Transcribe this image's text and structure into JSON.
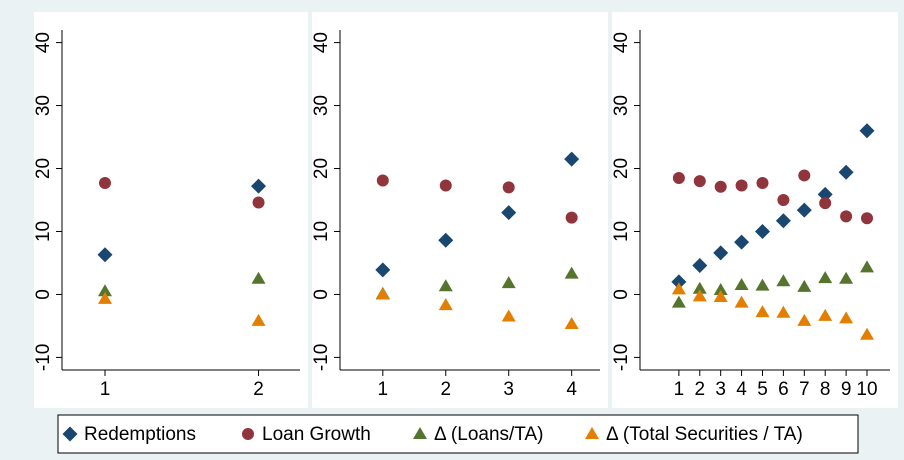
{
  "chart_data": [
    {
      "type": "scatter",
      "x": [
        1,
        2
      ],
      "xlim": [
        0.72,
        2.27
      ],
      "xticks": [
        1,
        2
      ],
      "ylim": [
        -12,
        42
      ],
      "yticks": [
        -10,
        0,
        10,
        20,
        30,
        40
      ],
      "series": [
        {
          "name": "Redemptions",
          "color": "#1a476f",
          "values": [
            6.3,
            17.2
          ]
        },
        {
          "name": "Loan Growth",
          "color": "#90353b",
          "values": [
            17.7,
            14.6
          ]
        },
        {
          "name": "Δ (Loans/TA)",
          "color": "#55752f",
          "values": [
            0.5,
            2.5
          ]
        },
        {
          "name": "Δ (Total Securities / TA)",
          "color": "#e37e00",
          "values": [
            -0.7,
            -4.2
          ]
        }
      ]
    },
    {
      "type": "scatter",
      "x": [
        1,
        2,
        3,
        4
      ],
      "xlim": [
        0.32,
        4.45
      ],
      "xticks": [
        1,
        2,
        3,
        4
      ],
      "ylim": [
        -12,
        42
      ],
      "yticks": [
        -10,
        0,
        10,
        20,
        30,
        40
      ],
      "series": [
        {
          "color": "#1a476f",
          "values": [
            3.9,
            8.6,
            13,
            21.5
          ]
        },
        {
          "color": "#90353b",
          "values": [
            18.1,
            17.3,
            17,
            12.2
          ]
        },
        {
          "color": "#55752f",
          "values": [
            0.1,
            1.3,
            1.8,
            3.3
          ]
        },
        {
          "color": "#e37e00",
          "values": [
            0,
            -1.7,
            -3.5,
            -4.7
          ]
        }
      ]
    },
    {
      "type": "scatter",
      "x": [
        1,
        2,
        3,
        4,
        5,
        6,
        7,
        8,
        9,
        10
      ],
      "xlim": [
        -0.86,
        11.1
      ],
      "xticks": [
        1,
        2,
        3,
        4,
        5,
        6,
        7,
        8,
        9,
        10
      ],
      "ylim": [
        -12,
        42
      ],
      "yticks": [
        -10,
        0,
        10,
        20,
        30,
        40
      ],
      "series": [
        {
          "color": "#1a476f",
          "values": [
            2,
            4.6,
            6.6,
            8.3,
            10,
            11.7,
            13.4,
            15.9,
            19.4,
            26
          ]
        },
        {
          "color": "#90353b",
          "values": [
            18.5,
            18,
            17.1,
            17.3,
            17.7,
            15,
            18.9,
            14.5,
            12.4,
            12.1
          ]
        },
        {
          "color": "#55752f",
          "values": [
            -1.3,
            0.9,
            0.7,
            1.5,
            1.4,
            2.1,
            1.2,
            2.6,
            2.5,
            4.3
          ]
        },
        {
          "color": "#e37e00",
          "values": [
            0.8,
            -0.3,
            -0.4,
            -1.3,
            -2.8,
            -2.9,
            -4.2,
            -3.4,
            -3.8,
            -6.4
          ]
        }
      ]
    }
  ]
}
